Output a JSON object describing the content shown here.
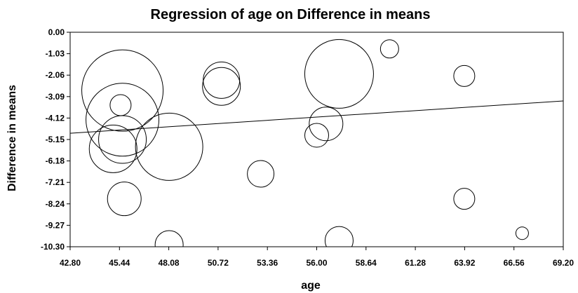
{
  "chart_data": {
    "type": "scatter",
    "title": "Regression of age on Difference in means",
    "xlabel": "age",
    "ylabel": "Difference in means",
    "xlim": [
      42.8,
      69.2
    ],
    "ylim": [
      -10.3,
      0.0
    ],
    "x_ticks": [
      "42.80",
      "45.44",
      "48.08",
      "50.72",
      "53.36",
      "56.00",
      "58.64",
      "61.28",
      "63.92",
      "66.56",
      "69.20"
    ],
    "y_ticks": [
      "0.00",
      "-1.03",
      "-2.06",
      "-3.09",
      "-4.12",
      "-5.15",
      "-6.18",
      "-7.21",
      "-8.24",
      "-9.27",
      "-10.30"
    ],
    "grid": false,
    "legend": "none",
    "bubble_sizing": "circle area proportional to study weight (relative radius shown)",
    "points": [
      {
        "x": 45.6,
        "y": -2.8,
        "r": 58
      },
      {
        "x": 45.6,
        "y": -4.2,
        "r": 52
      },
      {
        "x": 45.5,
        "y": -3.5,
        "r": 15
      },
      {
        "x": 45.6,
        "y": -5.15,
        "r": 34
      },
      {
        "x": 45.1,
        "y": -5.6,
        "r": 34
      },
      {
        "x": 48.1,
        "y": -5.5,
        "r": 48
      },
      {
        "x": 45.7,
        "y": -8.0,
        "r": 24
      },
      {
        "x": 48.1,
        "y": -10.2,
        "r": 20
      },
      {
        "x": 50.9,
        "y": -2.3,
        "r": 26
      },
      {
        "x": 50.9,
        "y": -2.6,
        "r": 27
      },
      {
        "x": 53.0,
        "y": -6.8,
        "r": 19
      },
      {
        "x": 56.0,
        "y": -4.95,
        "r": 17
      },
      {
        "x": 56.5,
        "y": -4.4,
        "r": 24
      },
      {
        "x": 57.2,
        "y": -2.0,
        "r": 49
      },
      {
        "x": 57.2,
        "y": -10.0,
        "r": 20
      },
      {
        "x": 59.9,
        "y": -0.8,
        "r": 13
      },
      {
        "x": 63.9,
        "y": -2.1,
        "r": 15
      },
      {
        "x": 63.9,
        "y": -8.0,
        "r": 15
      },
      {
        "x": 67.0,
        "y": -9.65,
        "r": 9
      }
    ],
    "regression_line": {
      "x": [
        42.8,
        69.2
      ],
      "y": [
        -4.85,
        -3.3
      ]
    }
  }
}
